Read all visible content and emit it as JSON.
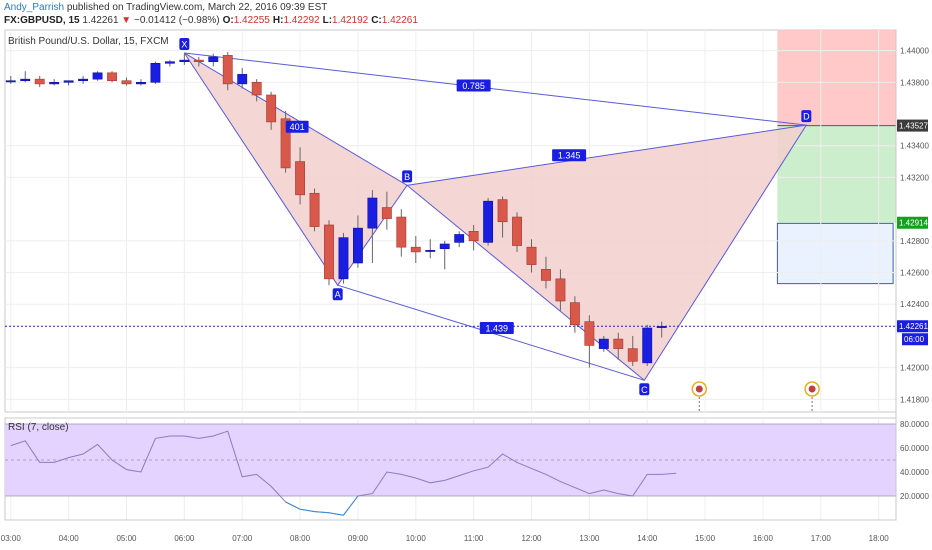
{
  "header": {
    "author": "Andy_Parrish",
    "published_text": "published on TradingView.com, March 22, 2016 09:39 EST",
    "symbol": "FX:GBPUSD, 15",
    "last": "1.42261",
    "change": "−0.01412 (−0.98%)",
    "o_label": "O:",
    "o_value": "1.42255",
    "h_label": "H:",
    "h_value": "1.42292",
    "l_label": "L:",
    "l_value": "1.42192",
    "c_label": "C:",
    "c_value": "1.42261"
  },
  "instrument_title": "British Pound/U.S. Dollar, 15, FXCM",
  "price_labels": {
    "current": "1.42261",
    "countdown": "06:00",
    "stop": "1.43527",
    "target": "1.42914"
  },
  "indicator": {
    "title": "RSI (7, close)"
  },
  "colors": {
    "bull": "#1a1ee0",
    "bear": "#d9584c",
    "pattern_line": "#5a5ad8",
    "pattern_fill": "#f2d0ce",
    "rsi_fill": "#e4d2ff",
    "rsi_line": "#8a7cc0",
    "risk_zone": "#ffc9c9",
    "reward_zone": "#cdeecc",
    "entry_zone": "#eaf2ff",
    "price_tag": "#14a01e",
    "current_tag": "#1a1ee0",
    "stop_tag": "#3c3c3c"
  },
  "chart_data": [
    {
      "type": "candlestick",
      "title": "British Pound/U.S. Dollar, 15, FXCM",
      "x_ticks": [
        "03:00",
        "04:00",
        "05:00",
        "06:00",
        "07:00",
        "08:00",
        "09:00",
        "10:00",
        "11:00",
        "12:00",
        "13:00",
        "14:00",
        "15:00",
        "16:00",
        "17:00",
        "18:00"
      ],
      "x_tick_times": [
        3,
        4,
        5,
        6,
        7,
        8,
        9,
        10,
        11,
        12,
        13,
        14,
        15,
        16,
        17,
        18
      ],
      "x_range": [
        2.9,
        18.3
      ],
      "y_ticks": [
        "1.44000",
        "1.43800",
        "1.43400",
        "1.43200",
        "1.42800",
        "1.42600",
        "1.42400",
        "1.42000",
        "1.41800"
      ],
      "y_tick_values": [
        1.44,
        1.438,
        1.434,
        1.432,
        1.428,
        1.426,
        1.424,
        1.42,
        1.418
      ],
      "y_range": [
        1.4172,
        1.4413
      ],
      "grid": true,
      "candles": [
        {
          "t": 3.0,
          "o": 1.4381,
          "h": 1.4384,
          "l": 1.4379,
          "c": 1.4381
        },
        {
          "t": 3.25,
          "o": 1.4381,
          "h": 1.4387,
          "l": 1.438,
          "c": 1.4382
        },
        {
          "t": 3.5,
          "o": 1.4382,
          "h": 1.4384,
          "l": 1.4377,
          "c": 1.4379
        },
        {
          "t": 3.75,
          "o": 1.4379,
          "h": 1.4382,
          "l": 1.4378,
          "c": 1.438
        },
        {
          "t": 4.0,
          "o": 1.438,
          "h": 1.4381,
          "l": 1.4378,
          "c": 1.4381
        },
        {
          "t": 4.25,
          "o": 1.4381,
          "h": 1.4384,
          "l": 1.4379,
          "c": 1.4382
        },
        {
          "t": 4.5,
          "o": 1.4382,
          "h": 1.4387,
          "l": 1.4381,
          "c": 1.4386
        },
        {
          "t": 4.75,
          "o": 1.4386,
          "h": 1.4387,
          "l": 1.438,
          "c": 1.4381
        },
        {
          "t": 5.0,
          "o": 1.4381,
          "h": 1.4383,
          "l": 1.4378,
          "c": 1.4379
        },
        {
          "t": 5.25,
          "o": 1.4379,
          "h": 1.4382,
          "l": 1.4378,
          "c": 1.438
        },
        {
          "t": 5.5,
          "o": 1.438,
          "h": 1.4393,
          "l": 1.4379,
          "c": 1.4392
        },
        {
          "t": 5.75,
          "o": 1.4392,
          "h": 1.4394,
          "l": 1.439,
          "c": 1.4393
        },
        {
          "t": 6.0,
          "o": 1.4393,
          "h": 1.4398,
          "l": 1.4391,
          "c": 1.4394
        },
        {
          "t": 6.25,
          "o": 1.4394,
          "h": 1.4396,
          "l": 1.439,
          "c": 1.4393
        },
        {
          "t": 6.5,
          "o": 1.4393,
          "h": 1.4398,
          "l": 1.439,
          "c": 1.4396
        },
        {
          "t": 6.75,
          "o": 1.4397,
          "h": 1.4399,
          "l": 1.4375,
          "c": 1.4379
        },
        {
          "t": 7.0,
          "o": 1.4379,
          "h": 1.4389,
          "l": 1.4376,
          "c": 1.4385
        },
        {
          "t": 7.25,
          "o": 1.438,
          "h": 1.4382,
          "l": 1.4368,
          "c": 1.4372
        },
        {
          "t": 7.5,
          "o": 1.4372,
          "h": 1.4374,
          "l": 1.435,
          "c": 1.4355
        },
        {
          "t": 7.75,
          "o": 1.4357,
          "h": 1.4362,
          "l": 1.4323,
          "c": 1.4326
        },
        {
          "t": 8.0,
          "o": 1.433,
          "h": 1.4339,
          "l": 1.4303,
          "c": 1.4309
        },
        {
          "t": 8.25,
          "o": 1.431,
          "h": 1.4313,
          "l": 1.4286,
          "c": 1.4289
        },
        {
          "t": 8.5,
          "o": 1.429,
          "h": 1.4293,
          "l": 1.4252,
          "c": 1.4256
        },
        {
          "t": 8.75,
          "o": 1.4256,
          "h": 1.4285,
          "l": 1.4253,
          "c": 1.4282
        },
        {
          "t": 9.0,
          "o": 1.4266,
          "h": 1.4296,
          "l": 1.4263,
          "c": 1.4288
        },
        {
          "t": 9.25,
          "o": 1.4288,
          "h": 1.4312,
          "l": 1.4266,
          "c": 1.4307
        },
        {
          "t": 9.5,
          "o": 1.4301,
          "h": 1.4311,
          "l": 1.4287,
          "c": 1.4294
        },
        {
          "t": 9.75,
          "o": 1.4295,
          "h": 1.43,
          "l": 1.427,
          "c": 1.4276
        },
        {
          "t": 10.0,
          "o": 1.4276,
          "h": 1.4283,
          "l": 1.4266,
          "c": 1.4273
        },
        {
          "t": 10.25,
          "o": 1.4274,
          "h": 1.4281,
          "l": 1.4269,
          "c": 1.4274
        },
        {
          "t": 10.5,
          "o": 1.4275,
          "h": 1.428,
          "l": 1.4262,
          "c": 1.4278
        },
        {
          "t": 10.75,
          "o": 1.4279,
          "h": 1.4286,
          "l": 1.4276,
          "c": 1.4284
        },
        {
          "t": 11.0,
          "o": 1.4286,
          "h": 1.429,
          "l": 1.4274,
          "c": 1.428
        },
        {
          "t": 11.25,
          "o": 1.4279,
          "h": 1.4307,
          "l": 1.4277,
          "c": 1.4305
        },
        {
          "t": 11.5,
          "o": 1.4306,
          "h": 1.4308,
          "l": 1.4282,
          "c": 1.4292
        },
        {
          "t": 11.75,
          "o": 1.4295,
          "h": 1.4298,
          "l": 1.4273,
          "c": 1.4277
        },
        {
          "t": 12.0,
          "o": 1.4276,
          "h": 1.4281,
          "l": 1.426,
          "c": 1.4265
        },
        {
          "t": 12.25,
          "o": 1.4262,
          "h": 1.427,
          "l": 1.425,
          "c": 1.4255
        },
        {
          "t": 12.5,
          "o": 1.4256,
          "h": 1.4262,
          "l": 1.4236,
          "c": 1.4242
        },
        {
          "t": 12.75,
          "o": 1.4241,
          "h": 1.4245,
          "l": 1.4222,
          "c": 1.4227
        },
        {
          "t": 13.0,
          "o": 1.4229,
          "h": 1.4233,
          "l": 1.42,
          "c": 1.4214
        },
        {
          "t": 13.25,
          "o": 1.4212,
          "h": 1.422,
          "l": 1.421,
          "c": 1.4218
        },
        {
          "t": 13.5,
          "o": 1.4218,
          "h": 1.4222,
          "l": 1.4205,
          "c": 1.4212
        },
        {
          "t": 13.75,
          "o": 1.4212,
          "h": 1.422,
          "l": 1.4201,
          "c": 1.4204
        },
        {
          "t": 14.0,
          "o": 1.4203,
          "h": 1.4227,
          "l": 1.4201,
          "c": 1.4225
        },
        {
          "t": 14.25,
          "o": 1.4226,
          "h": 1.4229,
          "l": 1.4219,
          "c": 1.4226
        }
      ],
      "current_price": 1.42261,
      "pattern_points": [
        {
          "name": "X",
          "t": 6.0,
          "price": 1.43985
        },
        {
          "name": "A",
          "t": 8.65,
          "price": 1.4252
        },
        {
          "name": "B",
          "t": 9.85,
          "price": 1.4315
        },
        {
          "name": "C",
          "t": 13.95,
          "price": 1.4192
        },
        {
          "name": "D",
          "t": 16.75,
          "price": 1.4353
        }
      ],
      "pattern_ratios": [
        {
          "label": "401",
          "pos": {
            "t": 7.95,
            "price": 1.4352
          }
        },
        {
          "label": "0.785",
          "pos": {
            "t": 11.0,
            "price": 1.4378
          }
        },
        {
          "label": "1.345",
          "pos": {
            "t": 12.65,
            "price": 1.4334
          }
        },
        {
          "label": "1.439",
          "pos": {
            "t": 11.4,
            "price": 1.4225
          }
        }
      ],
      "zones": {
        "stop_range": [
          1.43527,
          1.4413
        ],
        "target_range": [
          1.42914,
          1.43527
        ],
        "entry_range": [
          1.4253,
          1.4291
        ],
        "time_range": [
          16.25,
          18.3
        ],
        "entry_time_range": [
          16.25,
          18.25
        ]
      },
      "event_markers": [
        14.9,
        16.85
      ]
    },
    {
      "type": "line",
      "title": "RSI (7, close)",
      "series": [
        {
          "name": "RSI (7, close)",
          "x": [
            3.0,
            3.25,
            3.5,
            3.75,
            4.0,
            4.25,
            4.5,
            4.75,
            5.0,
            5.25,
            5.5,
            5.75,
            6.0,
            6.25,
            6.5,
            6.75,
            7.0,
            7.25,
            7.5,
            7.75,
            8.0,
            8.25,
            8.5,
            8.75,
            9.0,
            9.25,
            9.5,
            9.75,
            10.0,
            10.25,
            10.5,
            10.75,
            11.0,
            11.25,
            11.5,
            11.75,
            12.0,
            12.25,
            12.5,
            12.75,
            13.0,
            13.25,
            13.5,
            13.75,
            14.0,
            14.25,
            14.5
          ],
          "values": [
            62,
            66,
            48,
            48,
            52,
            55,
            63,
            50,
            42,
            40,
            68,
            70,
            70,
            68,
            70,
            74,
            36,
            38,
            28,
            15,
            9,
            7,
            6,
            4,
            20,
            22,
            40,
            38,
            35,
            31,
            33,
            37,
            41,
            44,
            55,
            48,
            43,
            38,
            32,
            27,
            22,
            25,
            22,
            20,
            38,
            38,
            39
          ]
        }
      ],
      "y_ticks": [
        "80.0000",
        "60.0000",
        "40.0000",
        "20.0000"
      ],
      "y_tick_values": [
        80,
        60,
        40,
        20
      ],
      "y_range": [
        0,
        85
      ],
      "band": [
        20,
        80
      ]
    }
  ]
}
